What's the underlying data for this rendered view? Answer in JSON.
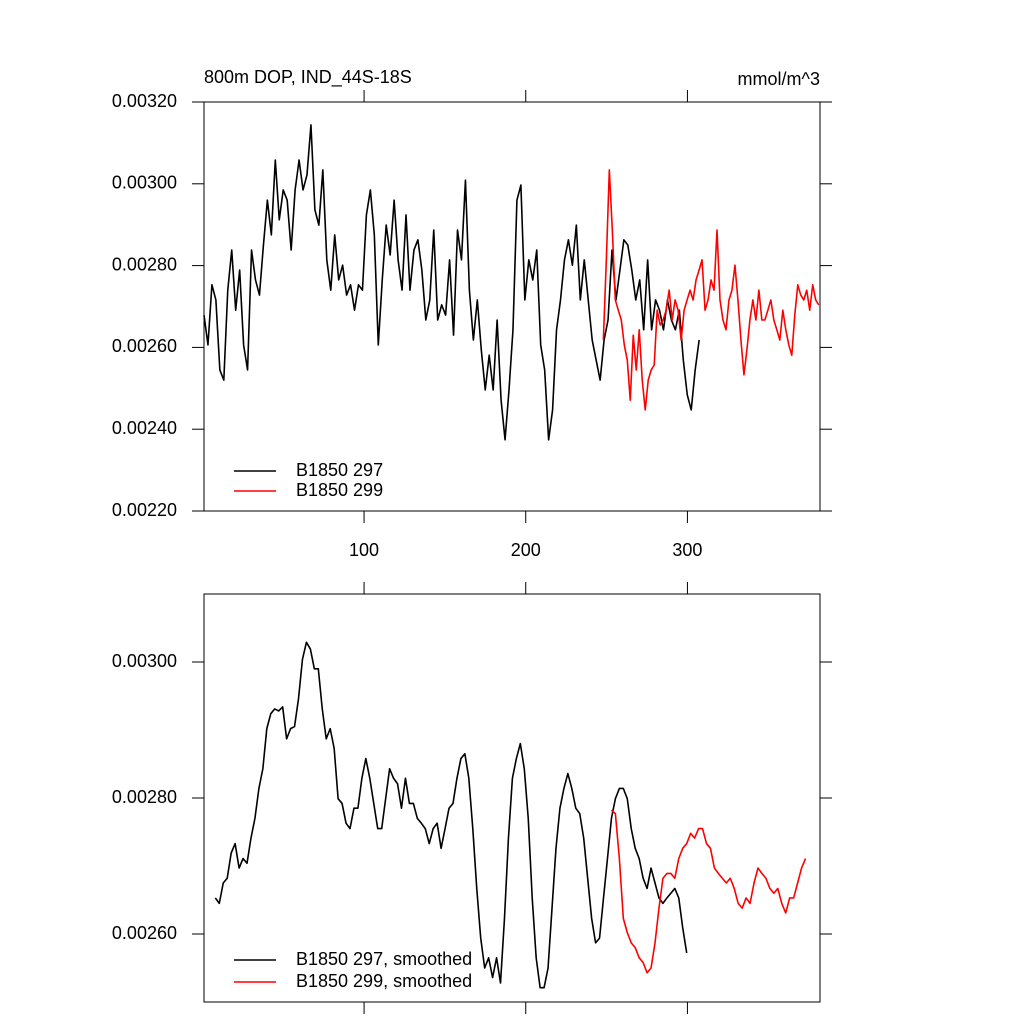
{
  "chart_data": [
    {
      "type": "line",
      "title": "800m DOP, IND_44S-18S",
      "units": "mmol/m^3",
      "xlim": [
        1,
        382
      ],
      "ylim": [
        0.0022,
        0.0032
      ],
      "xticks": [
        100,
        200,
        300
      ],
      "yticks": [
        {
          "value": 0.0022,
          "label": "0.00220"
        },
        {
          "value": 0.0024,
          "label": "0.00240"
        },
        {
          "value": 0.0026,
          "label": "0.00260"
        },
        {
          "value": 0.0028,
          "label": "0.00280"
        },
        {
          "value": 0.003,
          "label": "0.00300"
        },
        {
          "value": 0.0032,
          "label": "0.00320"
        }
      ],
      "legend": "lower left",
      "series": [
        {
          "name": "B1850 297",
          "color": "#000000",
          "x": [
            1,
            3.45,
            5.9,
            8.35,
            10.8,
            13.25,
            15.7,
            18.15,
            20.6,
            23.05,
            25.5,
            27.95,
            30.4,
            32.85,
            35.3,
            37.75,
            40.2,
            42.65,
            45.1,
            47.55,
            50,
            52.45,
            54.9,
            57.35,
            59.8,
            62.25,
            64.7,
            67.15,
            69.6,
            72.05,
            74.5,
            76.95,
            79.4,
            81.85,
            84.3,
            86.75,
            89.2,
            91.65,
            94.1,
            96.55,
            99,
            101.45,
            103.9,
            106.35,
            108.8,
            111.25,
            113.7,
            116.15,
            118.6,
            121.05,
            123.5,
            125.95,
            128.4,
            130.85,
            133.3,
            135.75,
            138.2,
            140.65,
            143.1,
            145.55,
            148,
            150.45,
            152.9,
            155.35,
            157.8,
            160.25,
            162.7,
            165.15,
            167.6,
            170.05,
            172.5,
            174.95,
            177.4,
            179.85,
            182.3,
            184.75,
            187.2,
            189.65,
            192.1,
            194.55,
            197,
            199.45,
            201.9,
            204.35,
            206.8,
            209.25,
            211.7,
            214.15,
            216.6,
            219.05,
            221.5,
            223.95,
            226.4,
            228.85,
            231.3,
            233.75,
            236.2,
            238.65,
            241.1,
            243.55,
            246,
            248.45,
            250.9,
            253.35,
            255.8,
            258.25,
            260.7,
            263.15,
            265.6,
            268.05,
            270.5,
            272.95,
            275.4,
            277.85,
            280.3,
            282.75,
            285.2,
            287.65,
            290.1,
            292.55,
            295,
            297.45,
            299.9,
            302.35,
            304.8,
            307.25
          ],
          "values": [
            0.002679,
            0.002606,
            0.002753,
            0.002716,
            0.002545,
            0.00252,
            0.00274,
            0.002838,
            0.002691,
            0.002789,
            0.002606,
            0.002545,
            0.002838,
            0.002765,
            0.002728,
            0.00285,
            0.00296,
            0.002875,
            0.003058,
            0.002912,
            0.002985,
            0.00296,
            0.002838,
            0.002985,
            0.003058,
            0.002985,
            0.003022,
            0.003144,
            0.002936,
            0.002899,
            0.003034,
            0.002814,
            0.00274,
            0.002875,
            0.002765,
            0.002801,
            0.002728,
            0.002753,
            0.002691,
            0.002753,
            0.00274,
            0.002924,
            0.002985,
            0.002875,
            0.002606,
            0.002765,
            0.002899,
            0.002826,
            0.00296,
            0.002814,
            0.00274,
            0.002924,
            0.00274,
            0.002838,
            0.002863,
            0.002789,
            0.002667,
            0.002716,
            0.002887,
            0.002667,
            0.002704,
            0.002679,
            0.002814,
            0.00263,
            0.002887,
            0.002814,
            0.003009,
            0.00274,
            0.002618,
            0.002716,
            0.002594,
            0.002496,
            0.002581,
            0.002496,
            0.002667,
            0.002471,
            0.002374,
            0.002496,
            0.002643,
            0.00296,
            0.002997,
            0.002716,
            0.002814,
            0.002765,
            0.002838,
            0.002606,
            0.002545,
            0.002374,
            0.002447,
            0.002643,
            0.002716,
            0.002814,
            0.002863,
            0.002801,
            0.002899,
            0.002716,
            0.002814,
            0.002716,
            0.002618,
            0.002569,
            0.00252,
            0.002618,
            0.002667,
            0.002838,
            0.002716,
            0.002789,
            0.002863,
            0.00285,
            0.002789,
            0.002716,
            0.002765,
            0.002643,
            0.002814,
            0.002643,
            0.002716,
            0.002691,
            0.002643,
            0.002716,
            0.002667,
            0.002643,
            0.002691,
            0.002569,
            0.002484,
            0.002447,
            0.002545,
            0.002618
          ]
        },
        {
          "name": "B1850 299",
          "color": "#ff0000",
          "x": [
            248,
            249.85,
            251.7,
            253.55,
            255.4,
            257.25,
            259.1,
            260.95,
            262.8,
            264.65,
            266.5,
            268.35,
            270.2,
            272.05,
            273.9,
            275.75,
            277.6,
            279.45,
            281.3,
            283.15,
            285,
            286.85,
            288.7,
            290.55,
            292.4,
            294.25,
            296.1,
            297.95,
            299.8,
            301.65,
            303.5,
            305.35,
            307.2,
            309.05,
            310.9,
            312.75,
            314.6,
            316.45,
            318.3,
            320.15,
            322,
            323.85,
            325.7,
            327.55,
            329.4,
            331.25,
            333.1,
            334.95,
            336.8,
            338.65,
            340.5,
            342.35,
            344.2,
            346.05,
            347.9,
            349.75,
            351.6,
            353.45,
            355.3,
            357.15,
            359,
            360.85,
            362.7,
            364.55,
            366.4,
            368.25,
            370.1,
            371.95,
            373.8,
            375.65,
            377.5,
            379.35,
            381.2
          ],
          "values": [
            0.002618,
            0.002814,
            0.003034,
            0.002887,
            0.002716,
            0.002691,
            0.002667,
            0.002606,
            0.002569,
            0.002471,
            0.00263,
            0.002545,
            0.002643,
            0.00252,
            0.002447,
            0.00252,
            0.002545,
            0.002557,
            0.002691,
            0.002655,
            0.002667,
            0.002691,
            0.00274,
            0.002667,
            0.002716,
            0.002691,
            0.002618,
            0.002691,
            0.002716,
            0.00274,
            0.002716,
            0.002765,
            0.002789,
            0.002814,
            0.002691,
            0.002716,
            0.002765,
            0.00274,
            0.002887,
            0.002716,
            0.002667,
            0.002643,
            0.002716,
            0.00274,
            0.002801,
            0.002716,
            0.002618,
            0.002533,
            0.002594,
            0.002667,
            0.002716,
            0.002667,
            0.00274,
            0.002667,
            0.002667,
            0.002691,
            0.002716,
            0.002667,
            0.002643,
            0.002618,
            0.002691,
            0.002643,
            0.002606,
            0.002581,
            0.002679,
            0.002753,
            0.002728,
            0.002716,
            0.00274,
            0.002691,
            0.002753,
            0.002716,
            0.002704
          ]
        }
      ]
    },
    {
      "type": "line",
      "xlim": [
        1,
        382
      ],
      "ylim": [
        0.0025,
        0.0031
      ],
      "xticks": [
        100,
        200,
        300
      ],
      "xtick_labels": false,
      "yticks": [
        {
          "value": 0.0026,
          "label": "0.00260"
        },
        {
          "value": 0.0028,
          "label": "0.00280"
        },
        {
          "value": 0.003,
          "label": "0.00300"
        }
      ],
      "legend": "lower left",
      "series": [
        {
          "name": "B1850 297, smoothed",
          "color": "#000000",
          "x": [
            8,
            10.45,
            12.9,
            15.35,
            17.8,
            20.25,
            22.7,
            25.15,
            27.6,
            30.05,
            32.5,
            34.95,
            37.4,
            39.85,
            42.3,
            44.75,
            47.2,
            49.65,
            52.1,
            54.55,
            57,
            59.45,
            61.9,
            64.35,
            66.8,
            69.25,
            71.7,
            74.15,
            76.6,
            79.05,
            81.5,
            83.95,
            86.4,
            88.85,
            91.3,
            93.75,
            96.2,
            98.65,
            101.1,
            103.55,
            106,
            108.45,
            110.9,
            113.35,
            115.8,
            118.25,
            120.7,
            123.15,
            125.6,
            128.05,
            130.5,
            132.95,
            135.4,
            137.85,
            140.3,
            142.75,
            145.2,
            147.65,
            150.1,
            152.55,
            155,
            157.45,
            159.9,
            162.35,
            164.8,
            167.25,
            169.7,
            172.15,
            174.6,
            177.05,
            179.5,
            181.95,
            184.4,
            186.85,
            189.3,
            191.75,
            194.2,
            196.65,
            199.1,
            201.55,
            204,
            206.45,
            208.9,
            211.35,
            213.8,
            216.25,
            218.7,
            221.15,
            223.6,
            226.05,
            228.5,
            230.95,
            233.4,
            235.85,
            238.3,
            240.75,
            243.2,
            245.65,
            248.1,
            250.55,
            253,
            255.45,
            257.9,
            260.35,
            262.8,
            265.25,
            267.7,
            270.15,
            272.6,
            275.05,
            277.5,
            279.95,
            282.4,
            284.85,
            287.3,
            289.75,
            292.2,
            294.65,
            297.1,
            299.55
          ],
          "values": [
            0.002653,
            0.002645,
            0.002675,
            0.002682,
            0.002719,
            0.002733,
            0.002697,
            0.002711,
            0.002704,
            0.002741,
            0.00277,
            0.002814,
            0.002843,
            0.002902,
            0.002924,
            0.002931,
            0.002928,
            0.002934,
            0.002887,
            0.002902,
            0.002905,
            0.002946,
            0.003004,
            0.003029,
            0.003019,
            0.00299,
            0.00299,
            0.002931,
            0.002887,
            0.002902,
            0.002873,
            0.002799,
            0.002792,
            0.002763,
            0.002755,
            0.002785,
            0.002785,
            0.002829,
            0.002858,
            0.002829,
            0.002792,
            0.002755,
            0.002755,
            0.002799,
            0.002843,
            0.002829,
            0.002821,
            0.002785,
            0.002829,
            0.002792,
            0.002792,
            0.00277,
            0.002763,
            0.002755,
            0.002733,
            0.002755,
            0.002763,
            0.002726,
            0.002755,
            0.002785,
            0.002792,
            0.002829,
            0.002858,
            0.002865,
            0.002829,
            0.002755,
            0.002667,
            0.002594,
            0.00255,
            0.002565,
            0.002536,
            0.002565,
            0.002528,
            0.002623,
            0.002741,
            0.002829,
            0.002858,
            0.00288,
            0.002843,
            0.00277,
            0.002653,
            0.002565,
            0.002521,
            0.002521,
            0.00255,
            0.002638,
            0.002726,
            0.002785,
            0.002814,
            0.002836,
            0.002814,
            0.002785,
            0.002777,
            0.002741,
            0.002682,
            0.002623,
            0.002587,
            0.002594,
            0.002653,
            0.002711,
            0.00277,
            0.002799,
            0.002814,
            0.002814,
            0.002799,
            0.002755,
            0.002726,
            0.002711,
            0.002682,
            0.002667,
            0.002697,
            0.002675,
            0.002653,
            0.002645,
            0.002653,
            0.00266,
            0.002667,
            0.002653,
            0.002609,
            0.002572
          ]
        },
        {
          "name": "B1850 299, smoothed",
          "color": "#ff0000",
          "x": [
            253,
            255.45,
            257.9,
            260.35,
            262.8,
            265.25,
            267.7,
            270.15,
            272.6,
            275.05,
            277.5,
            279.95,
            282.4,
            284.85,
            287.3,
            289.75,
            292.2,
            294.65,
            297.1,
            299.55,
            302,
            304.45,
            306.9,
            309.35,
            311.8,
            314.25,
            316.7,
            319.15,
            321.6,
            324.05,
            326.5,
            328.95,
            331.4,
            333.85,
            336.3,
            338.75,
            341.2,
            343.65,
            346.1,
            348.55,
            351,
            353.45,
            355.9,
            358.35,
            360.8,
            363.25,
            365.7,
            368.15,
            370.6,
            373.05
          ],
          "values": [
            0.002782,
            0.002777,
            0.002711,
            0.002623,
            0.002602,
            0.002587,
            0.00258,
            0.002565,
            0.002558,
            0.002543,
            0.00255,
            0.002587,
            0.002638,
            0.002682,
            0.002689,
            0.002689,
            0.002682,
            0.002711,
            0.002726,
            0.002733,
            0.002748,
            0.002741,
            0.002755,
            0.002755,
            0.002733,
            0.002726,
            0.002697,
            0.002689,
            0.002682,
            0.002675,
            0.002682,
            0.002667,
            0.002645,
            0.002638,
            0.002653,
            0.002645,
            0.002675,
            0.002697,
            0.002689,
            0.002682,
            0.002667,
            0.00266,
            0.002667,
            0.002645,
            0.002631,
            0.002653,
            0.002653,
            0.002675,
            0.002697,
            0.002711
          ]
        }
      ]
    }
  ]
}
